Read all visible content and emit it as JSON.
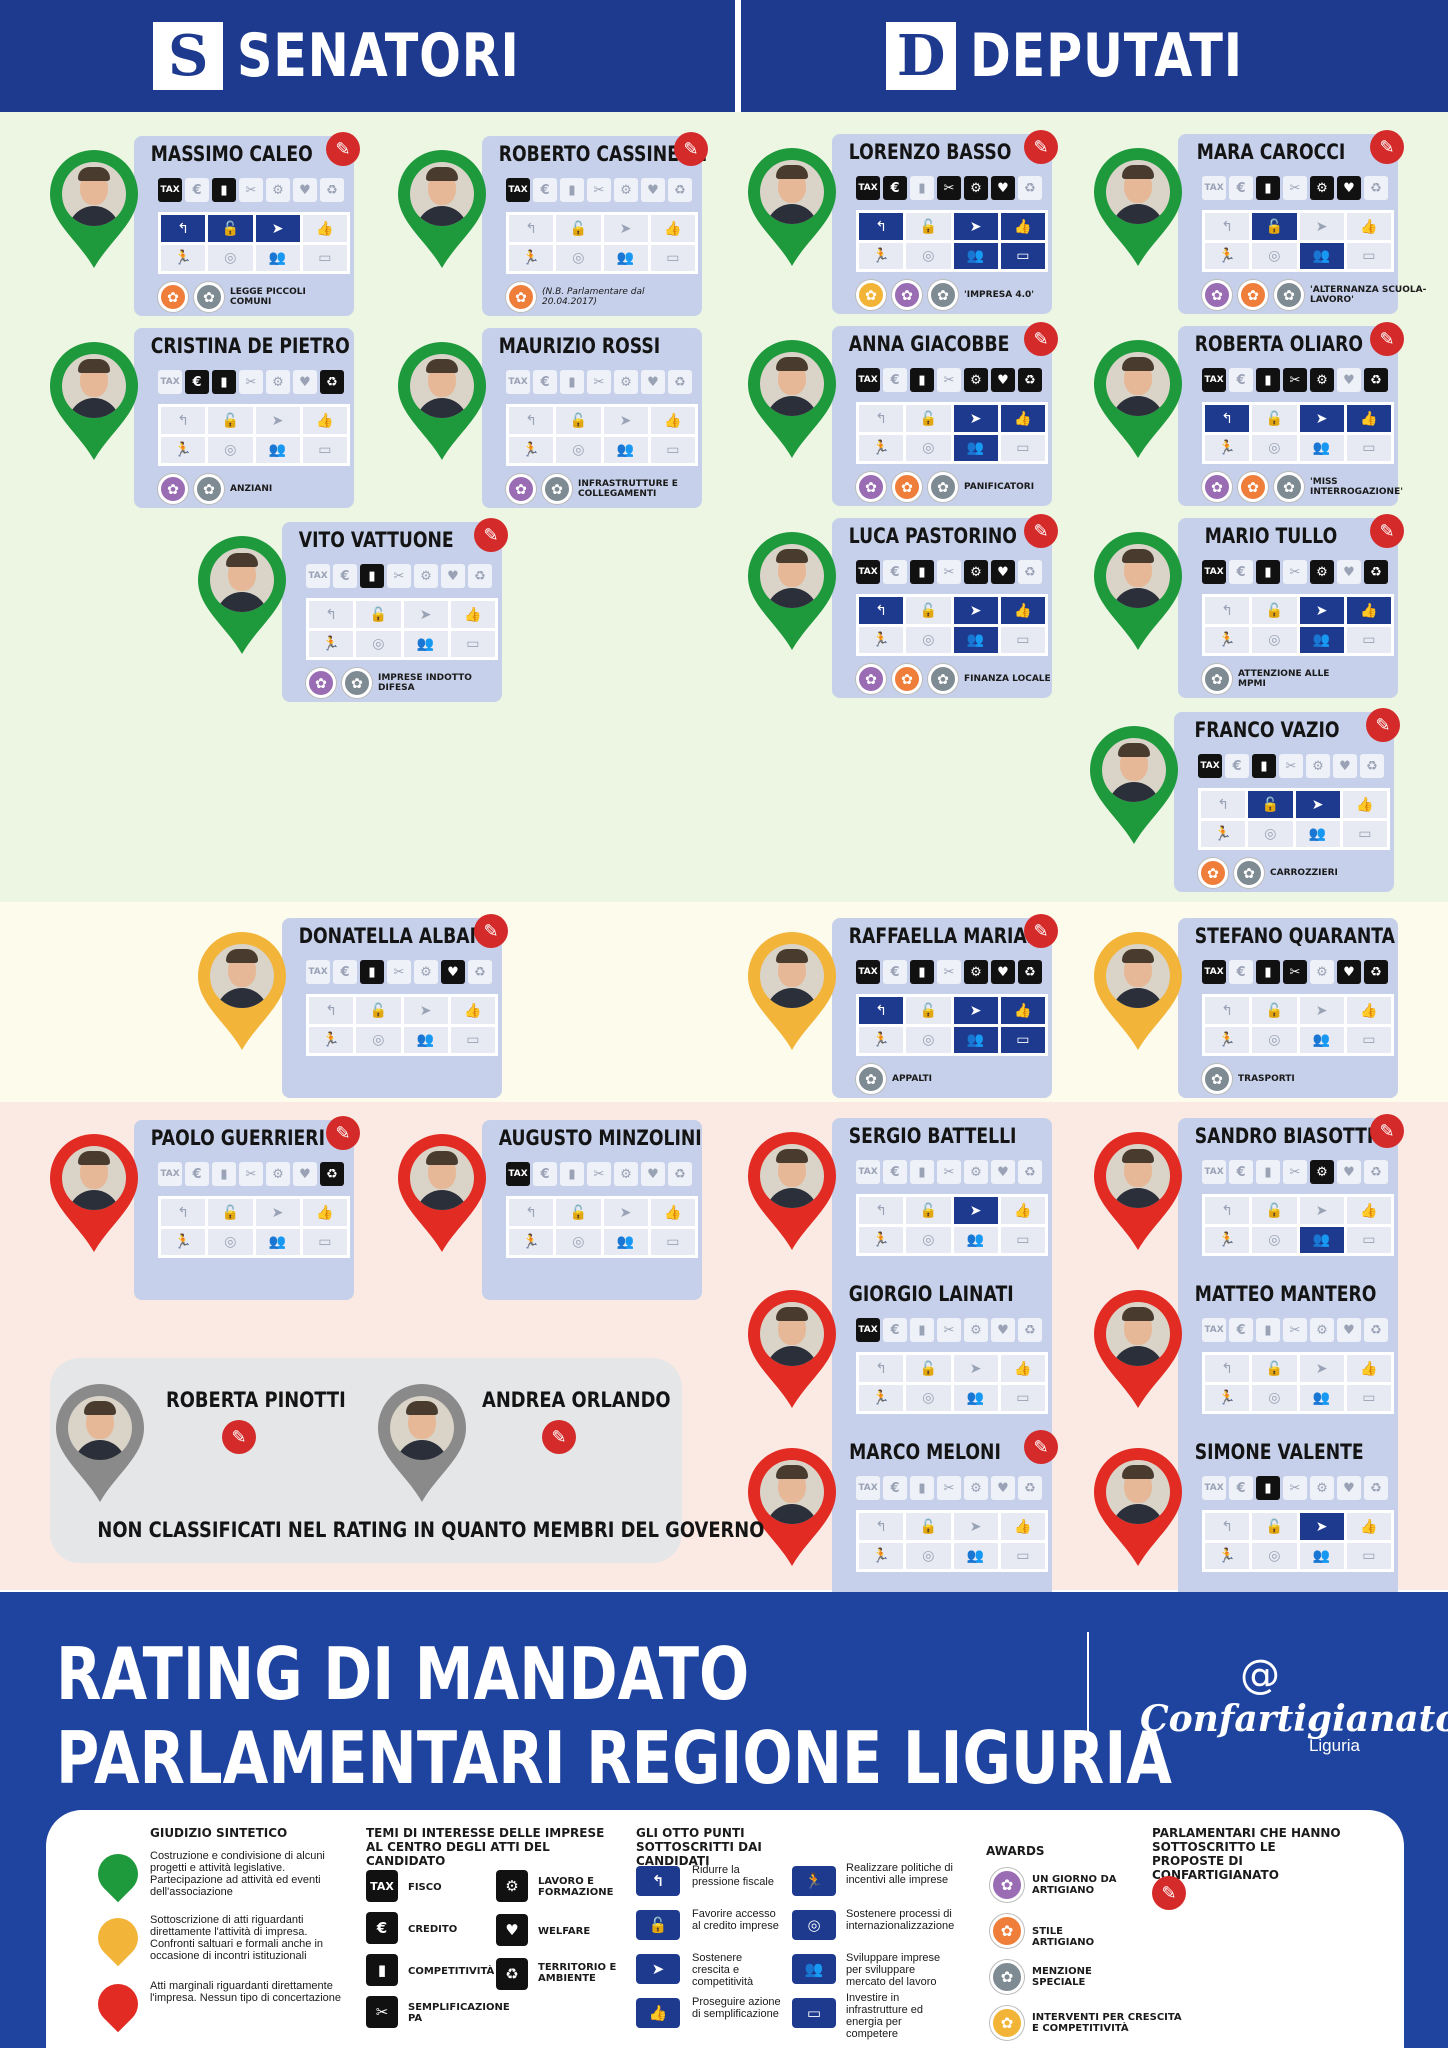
{
  "header": {
    "left_title": "SENATORI",
    "left_logo": "S",
    "right_title": "DEPUTATI",
    "right_logo": "D"
  },
  "pin_colors": {
    "green": "#1e9a3c",
    "yellow": "#f3b43a",
    "red": "#e12b23",
    "gray": "#8a8a8a"
  },
  "top_icon_glyphs": [
    "TAX",
    "€",
    "▮",
    "✂",
    "⚙",
    "♥",
    "♻"
  ],
  "grid_icon_glyphs": [
    "↰",
    "🔓",
    "➤",
    "👍",
    "🏃",
    "◎",
    "👥",
    "▭"
  ],
  "politicians": [
    {
      "name": "MASSIMO CALEO",
      "pin": "green",
      "pen": true,
      "top_on": [
        0,
        2
      ],
      "grid_on": [
        0,
        1,
        2
      ],
      "awards": [
        "orange",
        "gray"
      ],
      "note": "LEGGE PICCOLI COMUNI",
      "note_italic": false
    },
    {
      "name": "ROBERTO CASSINELLI",
      "pin": "green",
      "pen": true,
      "top_on": [
        0
      ],
      "grid_on": [],
      "awards": [
        "orange"
      ],
      "note": "(N.B. Parlamentare dal 20.04.2017)",
      "note_italic": true
    },
    {
      "name": "CRISTINA DE PIETRO",
      "pin": "green",
      "pen": false,
      "top_on": [
        1,
        2,
        6
      ],
      "grid_on": [],
      "awards": [
        "violet",
        "gray"
      ],
      "note": "ANZIANI",
      "note_italic": false
    },
    {
      "name": "MAURIZIO ROSSI",
      "pin": "green",
      "pen": false,
      "top_on": [],
      "grid_on": [],
      "awards": [
        "violet",
        "gray"
      ],
      "note": "INFRASTRUTTURE E COLLEGAMENTI",
      "note_italic": false
    },
    {
      "name": "VITO VATTUONE",
      "pin": "green",
      "pen": true,
      "top_on": [
        2
      ],
      "grid_on": [],
      "awards": [
        "violet",
        "gray"
      ],
      "note": "IMPRESE INDOTTO DIFESA",
      "note_italic": false
    },
    {
      "name": "LORENZO BASSO",
      "pin": "green",
      "pen": true,
      "top_on": [
        0,
        1,
        3,
        4,
        5
      ],
      "grid_on": [
        0,
        2,
        3,
        6,
        7
      ],
      "awards": [
        "gold",
        "violet",
        "gray"
      ],
      "note": "'IMPRESA 4.0'",
      "note_italic": false
    },
    {
      "name": "MARA CAROCCI",
      "pin": "green",
      "pen": true,
      "top_on": [
        2,
        4,
        5
      ],
      "grid_on": [
        1,
        6
      ],
      "awards": [
        "violet",
        "orange",
        "gray"
      ],
      "note": "'ALTERNANZA SCUOLA-LAVORO'",
      "note_italic": false
    },
    {
      "name": "ANNA GIACOBBE",
      "pin": "green",
      "pen": true,
      "top_on": [
        0,
        2,
        4,
        5,
        6
      ],
      "grid_on": [
        2,
        3,
        6
      ],
      "awards": [
        "violet",
        "orange",
        "gray"
      ],
      "note": "PANIFICATORI",
      "note_italic": false
    },
    {
      "name": "ROBERTA OLIARO",
      "pin": "green",
      "pen": true,
      "top_on": [
        0,
        2,
        3,
        4,
        6
      ],
      "grid_on": [
        0,
        2,
        3
      ],
      "awards": [
        "violet",
        "orange",
        "gray"
      ],
      "note": "'MISS INTERROGAZIONE'",
      "note_italic": false
    },
    {
      "name": "LUCA PASTORINO",
      "pin": "green",
      "pen": true,
      "top_on": [
        0,
        2,
        4,
        5
      ],
      "grid_on": [
        0,
        2,
        3,
        6
      ],
      "awards": [
        "violet",
        "orange",
        "gray"
      ],
      "note": "FINANZA LOCALE",
      "note_italic": false
    },
    {
      "name": "MARIO TULLO",
      "pin": "green",
      "pen": true,
      "top_on": [
        0,
        2,
        4,
        6
      ],
      "grid_on": [
        2,
        3,
        6
      ],
      "awards": [
        "gray"
      ],
      "note": "ATTENZIONE ALLE MPMI",
      "note_italic": false
    },
    {
      "name": "FRANCO VAZIO",
      "pin": "green",
      "pen": true,
      "top_on": [
        0,
        2
      ],
      "grid_on": [
        1,
        2
      ],
      "awards": [
        "orange",
        "gray"
      ],
      "note": "CARROZZIERI",
      "note_italic": false
    },
    {
      "name": "DONATELLA ALBANO",
      "pin": "yellow",
      "pen": true,
      "top_on": [
        2,
        5
      ],
      "grid_on": [],
      "awards": [],
      "note": "",
      "note_italic": false
    },
    {
      "name": "RAFFAELLA MARIANI",
      "pin": "yellow",
      "pen": true,
      "top_on": [
        0,
        2,
        4,
        5,
        6
      ],
      "grid_on": [
        0,
        2,
        3,
        6,
        7
      ],
      "awards": [
        "gray"
      ],
      "note": "APPALTI",
      "note_italic": false
    },
    {
      "name": "STEFANO QUARANTA",
      "pin": "yellow",
      "pen": false,
      "top_on": [
        0,
        2,
        3,
        5,
        6
      ],
      "grid_on": [],
      "awards": [
        "gray"
      ],
      "note": "TRASPORTI",
      "note_italic": false
    },
    {
      "name": "PAOLO GUERRIERI M.",
      "pin": "red",
      "pen": true,
      "top_on": [
        6
      ],
      "grid_on": [],
      "awards": [],
      "note": "",
      "note_italic": false
    },
    {
      "name": "AUGUSTO MINZOLINI",
      "pin": "red",
      "pen": false,
      "top_on": [
        0
      ],
      "grid_on": [],
      "awards": [],
      "note": "",
      "note_italic": false
    },
    {
      "name": "SERGIO BATTELLI",
      "pin": "red",
      "pen": false,
      "top_on": [],
      "grid_on": [
        2
      ],
      "awards": [],
      "note": "",
      "note_italic": false
    },
    {
      "name": "SANDRO BIASOTTI",
      "pin": "red",
      "pen": true,
      "top_on": [
        4
      ],
      "grid_on": [
        6
      ],
      "awards": [],
      "note": "",
      "note_italic": false
    },
    {
      "name": "GIORGIO LAINATI",
      "pin": "red",
      "pen": false,
      "top_on": [
        0
      ],
      "grid_on": [],
      "awards": [],
      "note": "",
      "note_italic": false
    },
    {
      "name": "MATTEO MANTERO",
      "pin": "red",
      "pen": false,
      "top_on": [],
      "grid_on": [],
      "awards": [],
      "note": "",
      "note_italic": false
    },
    {
      "name": "MARCO MELONI",
      "pin": "red",
      "pen": true,
      "top_on": [],
      "grid_on": [],
      "awards": [],
      "note": "",
      "note_italic": false
    },
    {
      "name": "SIMONE VALENTE",
      "pin": "red",
      "pen": false,
      "top_on": [
        2
      ],
      "grid_on": [
        2
      ],
      "awards": [],
      "note": "",
      "note_italic": false
    }
  ],
  "government": {
    "members": [
      "ROBERTA PINOTTI",
      "ANDREA ORLANDO"
    ],
    "note": "NON CLASSIFICATI NEL RATING IN QUANTO MEMBRI DEL GOVERNO"
  },
  "footer": {
    "title_line1": "RATING DI MANDATO",
    "title_line2": "PARLAMENTARI REGIONE LIGURIA",
    "brand_symbol": "@",
    "brand_name": "Confartigianato",
    "brand_sub": "Liguria"
  },
  "legend": {
    "giudizio_title": "GIUDIZIO SINTETICO",
    "giudizio": [
      "Costruzione e condivisione di alcuni progetti e attività legislative. Partecipazione ad attività ed eventi dell'associazione",
      "Sottoscrizione di atti riguardanti direttamente l'attività di impresa. Confronti saltuari e formali anche in occasione di incontri istituzionali",
      "Atti marginali riguardanti direttamente l'impresa. Nessun tipo di concertazione"
    ],
    "temi_title": "TEMI DI INTERESSE DELLE IMPRESE AL CENTRO DEGLI ATTI DEL CANDIDATO",
    "temi": [
      "FISCO",
      "CREDITO",
      "COMPETITIVITÀ",
      "SEMPLIFICAZIONE PA",
      "LAVORO E FORMAZIONE",
      "WELFARE",
      "TERRITORIO E AMBIENTE"
    ],
    "punti_title": "GLI OTTO PUNTI SOTTOSCRITTI DAI CANDIDATI",
    "punti": [
      "Ridurre la pressione fiscale",
      "Favorire accesso al credito imprese",
      "Sostenere crescita e competitività",
      "Proseguire azione di semplificazione",
      "Realizzare politiche di incentivi alle imprese",
      "Sostenere processi di internazionalizzazione",
      "Sviluppare imprese per sviluppare mercato del lavoro",
      "Investire in infrastrutture ed energia per competere"
    ],
    "awards_title": "AWARDS",
    "awards": [
      "UN GIORNO DA ARTIGIANO",
      "STILE ARTIGIANO",
      "MENZIONE SPECIALE",
      "INTERVENTI PER CRESCITA E COMPETITIVITÀ"
    ],
    "sottoscritto_title": "PARLAMENTARI CHE HANNO SOTTOSCRITTO LE PROPOSTE DI CONFARTIGIANATO"
  }
}
